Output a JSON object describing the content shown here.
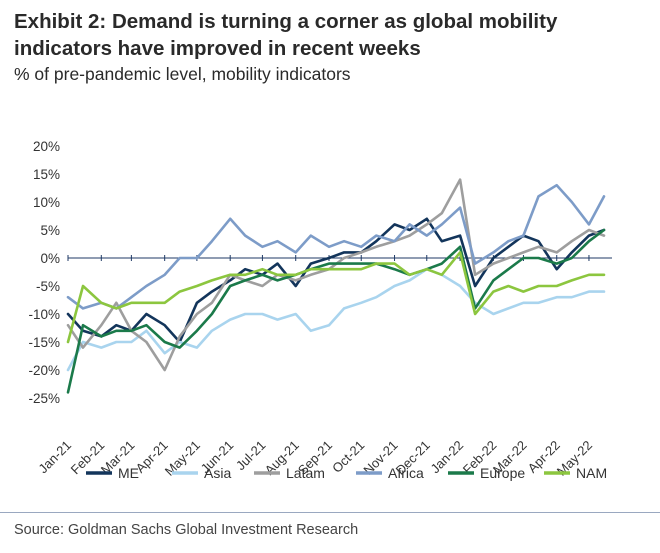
{
  "header": {
    "title": "Exhibit 2: Demand is turning a corner as global mobility indicators have improved in recent weeks",
    "subtitle": "% of pre-pandemic level, mobility indicators"
  },
  "footer": {
    "source": "Source: Goldman Sachs Global Investment Research"
  },
  "chart_data": {
    "type": "line",
    "title": "Exhibit 2: Demand is turning a corner as global mobility indicators have improved in recent weeks",
    "subtitle": "% of pre-pandemic level, mobility indicators",
    "x": [
      "2021-01-01",
      "2021-01-15",
      "2021-02-01",
      "2021-02-15",
      "2021-03-01",
      "2021-03-15",
      "2021-04-01",
      "2021-04-15",
      "2021-05-01",
      "2021-05-15",
      "2021-06-01",
      "2021-06-15",
      "2021-07-01",
      "2021-07-15",
      "2021-08-01",
      "2021-08-15",
      "2021-09-01",
      "2021-09-15",
      "2021-10-01",
      "2021-10-15",
      "2021-11-01",
      "2021-11-15",
      "2021-12-01",
      "2021-12-15",
      "2022-01-01",
      "2022-01-15",
      "2022-02-01",
      "2022-02-15",
      "2022-03-01",
      "2022-03-15",
      "2022-04-01",
      "2022-04-15",
      "2022-05-01",
      "2022-05-15"
    ],
    "x_tick_labels": [
      "Jan-21",
      "Feb-21",
      "Mar-21",
      "Apr-21",
      "May-21",
      "Jun-21",
      "Jul-21",
      "Aug-21",
      "Sep-21",
      "Oct-21",
      "Nov-21",
      "Dec-21",
      "Jan-22",
      "Feb-22",
      "Mar-22",
      "Apr-22",
      "May-22"
    ],
    "ylim": [
      -25,
      20
    ],
    "y_ticks": [
      "20%",
      "15%",
      "10%",
      "5%",
      "0%",
      "-5%",
      "-10%",
      "-15%",
      "-20%",
      "-25%"
    ],
    "y_unit": "%",
    "grid": false,
    "legend_position": "bottom",
    "series": [
      {
        "name": "ME",
        "color": "#13355b",
        "values": [
          -10,
          -13,
          -14,
          -12,
          -13,
          -10,
          -12,
          -15,
          -8,
          -6,
          -4,
          -2,
          -3,
          -1,
          -5,
          -1,
          0,
          1,
          1,
          3,
          6,
          5,
          7,
          3,
          4,
          -5,
          0,
          2,
          4,
          3,
          -2,
          1,
          4,
          5
        ]
      },
      {
        "name": "Asia",
        "color": "#a9d4ee",
        "values": [
          -20,
          -15,
          -16,
          -15,
          -15,
          -13,
          -17,
          -15,
          -16,
          -13,
          -11,
          -10,
          -10,
          -11,
          -10,
          -13,
          -12,
          -9,
          -8,
          -7,
          -5,
          -4,
          -2,
          -3,
          -5,
          -8,
          -10,
          -9,
          -8,
          -8,
          -7,
          -7,
          -6,
          -6
        ]
      },
      {
        "name": "Latam",
        "color": "#9e9e9e",
        "values": [
          -12,
          -16,
          -12,
          -8,
          -13,
          -15,
          -20,
          -14,
          -10,
          -8,
          -3,
          -4,
          -5,
          -3,
          -4,
          -3,
          -2,
          0,
          1,
          2,
          3,
          4,
          6,
          8,
          14,
          -3,
          -1,
          0,
          1,
          2,
          1,
          3,
          5,
          4
        ]
      },
      {
        "name": "Africa",
        "color": "#7d9cc8",
        "values": [
          -7,
          -9,
          -8,
          -9,
          -7,
          -5,
          -3,
          0,
          0,
          3,
          7,
          4,
          2,
          3,
          1,
          4,
          2,
          3,
          2,
          4,
          3,
          6,
          4,
          6,
          9,
          -1,
          1,
          3,
          4,
          11,
          13,
          10,
          6,
          11
        ]
      },
      {
        "name": "Europe",
        "color": "#1b7a4a",
        "values": [
          -24,
          -12,
          -14,
          -13,
          -13,
          -12,
          -15,
          -16,
          -13,
          -10,
          -5,
          -4,
          -3,
          -4,
          -3,
          -2,
          -1,
          -1,
          -1,
          -1,
          -2,
          -3,
          -2,
          -1,
          2,
          -9,
          -4,
          -2,
          0,
          0,
          -1,
          0,
          3,
          5
        ]
      },
      {
        "name": "NAM",
        "color": "#8cc63f",
        "values": [
          -15,
          -5,
          -8,
          -9,
          -8,
          -8,
          -8,
          -6,
          -5,
          -4,
          -3,
          -3,
          -2,
          -3,
          -3,
          -2,
          -2,
          -2,
          -2,
          -1,
          -1,
          -3,
          -2,
          -3,
          1,
          -10,
          -6,
          -5,
          -6,
          -5,
          -5,
          -4,
          -3,
          -3
        ]
      }
    ]
  }
}
